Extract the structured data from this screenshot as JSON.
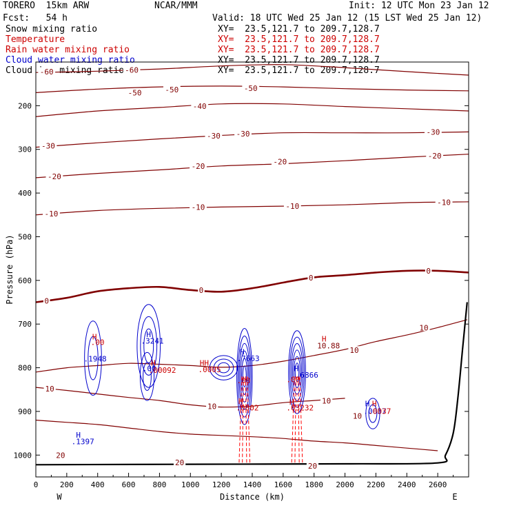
{
  "header": {
    "model": "TORERO  15km ARW",
    "org": "NCAR/MMM",
    "init": "Init: 12 UTC Mon 23 Jan 12",
    "fcst": "Fcst:   54 h",
    "valid": "Valid: 18 UTC Wed 25 Jan 12 (15 LST Wed 25 Jan 12)"
  },
  "legend": [
    {
      "label": "Snow mixing ratio",
      "xy": "XY=  23.5,121.7 to 209.7,128.7",
      "color": "#000000",
      "xycolor": "#000000"
    },
    {
      "label": "Temperature",
      "xy": "XY=  23.5,121.7 to 209.7,128.7",
      "color": "#cc0000",
      "xycolor": "#cc0000"
    },
    {
      "label": "Rain water mixing ratio",
      "xy": "XY=  23.5,121.7 to 209.7,128.7",
      "color": "#cc0000",
      "xycolor": "#cc0000"
    },
    {
      "label": "Cloud water mixing ratio",
      "xy": "XY=  23.5,121.7 to 209.7,128.7",
      "color": "#0000cc",
      "xycolor": "#000000"
    },
    {
      "label": "Cloud ice mixing ratio",
      "xy": "XY=  23.5,121.7 to 209.7,128.7",
      "color": "#000000",
      "xycolor": "#000000"
    }
  ],
  "chart_data": {
    "type": "contour",
    "xlabel": "Distance (km)",
    "ylabel": "Pressure (hPa)",
    "xlim": [
      0,
      2800
    ],
    "ylim": [
      1050,
      100
    ],
    "xticks": [
      0,
      200,
      400,
      600,
      800,
      1000,
      1200,
      1400,
      1600,
      1800,
      2000,
      2200,
      2400,
      2600
    ],
    "yticks": [
      200,
      300,
      400,
      500,
      600,
      700,
      800,
      900,
      1000
    ],
    "x_ends": [
      "W",
      "E"
    ],
    "colors": {
      "temperature": "#800000",
      "zero_isotherm": "#800000",
      "terrain": "#000000",
      "cloud_water": "#0000cc",
      "rain_water": "#ff0000"
    },
    "temperature_contours": [
      {
        "value": -60,
        "x": [
          0,
          400,
          800,
          1200,
          1600,
          2000,
          2400,
          2800
        ],
        "p": [
          124,
          121,
          116,
          109,
          106,
          113,
          122,
          130
        ]
      },
      {
        "value": -50,
        "x": [
          0,
          400,
          800,
          1200,
          1600,
          2000,
          2400,
          2800
        ],
        "p": [
          170,
          162,
          157,
          155,
          157,
          161,
          164,
          166
        ]
      },
      {
        "value": -40,
        "x": [
          0,
          400,
          800,
          1200,
          1600,
          2000,
          2400,
          2800
        ],
        "p": [
          225,
          212,
          204,
          196,
          196,
          202,
          207,
          212
        ]
      },
      {
        "value": -30,
        "x": [
          0,
          400,
          800,
          1200,
          1600,
          2000,
          2400,
          2800
        ],
        "p": [
          295,
          285,
          276,
          268,
          262,
          262,
          262,
          260
        ]
      },
      {
        "value": -20,
        "x": [
          0,
          400,
          800,
          1200,
          1600,
          2000,
          2400,
          2800
        ],
        "p": [
          365,
          355,
          347,
          338,
          333,
          326,
          318,
          311
        ]
      },
      {
        "value": -10,
        "x": [
          0,
          400,
          800,
          1200,
          1600,
          2000,
          2400,
          2800
        ],
        "p": [
          450,
          440,
          435,
          432,
          430,
          427,
          422,
          420
        ]
      },
      {
        "value": 0,
        "x": [
          0,
          200,
          400,
          600,
          800,
          1000,
          1200,
          1400,
          1600,
          1800,
          2000,
          2200,
          2400,
          2600,
          2800
        ],
        "p": [
          650,
          640,
          625,
          618,
          615,
          622,
          626,
          618,
          605,
          593,
          588,
          582,
          578,
          578,
          582
        ]
      },
      {
        "value": 10,
        "x": [
          0,
          200,
          400,
          600,
          800,
          1000,
          1200,
          1400,
          1600,
          1800,
          2000,
          2200,
          2400,
          2600,
          2790
        ],
        "p": [
          810,
          800,
          795,
          790,
          792,
          795,
          799,
          795,
          785,
          772,
          758,
          740,
          725,
          708,
          690
        ]
      },
      {
        "value": 10,
        "x": [
          0,
          200,
          400,
          600,
          800,
          1000,
          1200,
          1400,
          1600,
          1800,
          2000
        ],
        "p": [
          845,
          852,
          860,
          868,
          875,
          885,
          890,
          888,
          880,
          875,
          870
        ]
      },
      {
        "value": 20,
        "x": [
          0,
          200,
          400,
          600,
          800,
          1000,
          1200,
          1400,
          1600,
          1800,
          2000,
          2200,
          2400,
          2600
        ],
        "p": [
          920,
          925,
          930,
          938,
          946,
          952,
          955,
          958,
          962,
          968,
          972,
          978,
          984,
          990
        ]
      }
    ],
    "temperature_labels": [
      {
        "text": "-60",
        "x": 70,
        "p": 122
      },
      {
        "text": "-60",
        "x": 620,
        "p": 118
      },
      {
        "text": "-50",
        "x": 640,
        "p": 170
      },
      {
        "text": "-50",
        "x": 880,
        "p": 163
      },
      {
        "text": "-50",
        "x": 1390,
        "p": 160
      },
      {
        "text": "-40",
        "x": 1060,
        "p": 201
      },
      {
        "text": "-30",
        "x": 80,
        "p": 292
      },
      {
        "text": "-30",
        "x": 1150,
        "p": 269
      },
      {
        "text": "-30",
        "x": 1340,
        "p": 264
      },
      {
        "text": "-30",
        "x": 2570,
        "p": 260
      },
      {
        "text": "-20",
        "x": 120,
        "p": 362
      },
      {
        "text": "-20",
        "x": 1050,
        "p": 338
      },
      {
        "text": "-20",
        "x": 1580,
        "p": 328
      },
      {
        "text": "-20",
        "x": 2580,
        "p": 315
      },
      {
        "text": "-10",
        "x": 100,
        "p": 447
      },
      {
        "text": "-10",
        "x": 1050,
        "p": 432
      },
      {
        "text": "-10",
        "x": 1660,
        "p": 430
      },
      {
        "text": "-10",
        "x": 2640,
        "p": 421
      },
      {
        "text": "0",
        "x": 70,
        "p": 647
      },
      {
        "text": "0",
        "x": 1070,
        "p": 622
      },
      {
        "text": "0",
        "x": 1780,
        "p": 594
      },
      {
        "text": "0",
        "x": 2540,
        "p": 578
      },
      {
        "text": "10",
        "x": 2510,
        "p": 708
      },
      {
        "text": "10",
        "x": 2060,
        "p": 760
      },
      {
        "text": "10",
        "x": 90,
        "p": 848
      },
      {
        "text": "10",
        "x": 1140,
        "p": 888
      },
      {
        "text": "10",
        "x": 1880,
        "p": 876
      },
      {
        "text": "10",
        "x": 2080,
        "p": 910
      },
      {
        "text": "20",
        "x": 160,
        "p": 1000
      },
      {
        "text": "20",
        "x": 930,
        "p": 1017
      },
      {
        "text": "20",
        "x": 1790,
        "p": 1025
      }
    ],
    "terrain": {
      "x": [
        0,
        1000,
        2000,
        2600,
        2650,
        2700,
        2730,
        2760,
        2790
      ],
      "p": [
        1022,
        1021,
        1020,
        1018,
        1000,
        950,
        870,
        760,
        650
      ]
    },
    "cloud_water_blobs": [
      {
        "x": 370,
        "p": 778,
        "rx": 55,
        "rp": 85,
        "n": 2
      },
      {
        "x": 730,
        "p": 750,
        "rx": 75,
        "rp": 95,
        "n": 3
      },
      {
        "x": 720,
        "p": 820,
        "rx": 45,
        "rp": 55,
        "n": 2
      },
      {
        "x": 1215,
        "p": 800,
        "rx": 90,
        "rp": 28,
        "n": 3
      },
      {
        "x": 1350,
        "p": 820,
        "rx": 50,
        "rp": 110,
        "n": 6
      },
      {
        "x": 1690,
        "p": 810,
        "rx": 55,
        "rp": 95,
        "n": 6
      },
      {
        "x": 2180,
        "p": 905,
        "rx": 45,
        "rp": 35,
        "n": 2
      }
    ],
    "rain_columns": [
      {
        "x": 1350,
        "p_top": 820,
        "p_bottom": 1018,
        "halfwidth": 35
      },
      {
        "x": 1690,
        "p_top": 820,
        "p_bottom": 1018,
        "halfwidth": 35
      }
    ],
    "annotations": [
      {
        "text": "H",
        "x": 365,
        "p": 735,
        "color": "#cc0000"
      },
      {
        "text": ".00",
        "x": 355,
        "p": 748,
        "color": "#cc0000"
      },
      {
        "text": ".1948",
        "x": 310,
        "p": 786,
        "color": "#0000cc"
      },
      {
        "text": "H",
        "x": 715,
        "p": 730,
        "color": "#0000cc"
      },
      {
        "text": ".3241",
        "x": 680,
        "p": 745,
        "color": "#0000cc"
      },
      {
        "text": "H",
        "x": 745,
        "p": 795,
        "color": "#cc0000"
      },
      {
        "text": ".00",
        "x": 690,
        "p": 808,
        "color": "#0000cc"
      },
      {
        "text": ".00092",
        "x": 730,
        "p": 812,
        "color": "#cc0000"
      },
      {
        "text": "HH",
        "x": 1060,
        "p": 795,
        "color": "#cc0000"
      },
      {
        "text": ".0005",
        "x": 1050,
        "p": 810,
        "color": "#cc0000"
      },
      {
        "text": "H",
        "x": 1320,
        "p": 770,
        "color": "#0000cc"
      },
      {
        "text": ".7663",
        "x": 1300,
        "p": 785,
        "color": "#0000cc"
      },
      {
        "text": ".00",
        "x": 1300,
        "p": 835,
        "color": "#cc0000"
      },
      {
        "text": "H",
        "x": 1310,
        "p": 883,
        "color": "#cc0000"
      },
      {
        "text": ".0002",
        "x": 1295,
        "p": 898,
        "color": "#cc0000"
      },
      {
        "text": "H",
        "x": 1670,
        "p": 808,
        "color": "#0000cc"
      },
      {
        "text": ".6866",
        "x": 1680,
        "p": 823,
        "color": "#0000cc"
      },
      {
        "text": ".00",
        "x": 1620,
        "p": 833,
        "color": "#cc0000"
      },
      {
        "text": "H",
        "x": 1640,
        "p": 885,
        "color": "#cc0000"
      },
      {
        "text": ".03232",
        "x": 1620,
        "p": 898,
        "color": "#cc0000"
      },
      {
        "text": "H",
        "x": 1850,
        "p": 740,
        "color": "#cc0000"
      },
      {
        "text": "10.88",
        "x": 1820,
        "p": 756,
        "color": "#800000"
      },
      {
        "text": "H",
        "x": 2130,
        "p": 888,
        "color": "#0000cc"
      },
      {
        "text": "H",
        "x": 2175,
        "p": 888,
        "color": "#cc0000"
      },
      {
        "text": ".0037",
        "x": 2120,
        "p": 906,
        "color": "#0000cc"
      },
      {
        "text": ".0037",
        "x": 2150,
        "p": 906,
        "color": "#cc0000"
      },
      {
        "text": "H",
        "x": 260,
        "p": 960,
        "color": "#0000cc"
      },
      {
        "text": ".1397",
        "x": 230,
        "p": 975,
        "color": "#0000cc"
      }
    ]
  }
}
